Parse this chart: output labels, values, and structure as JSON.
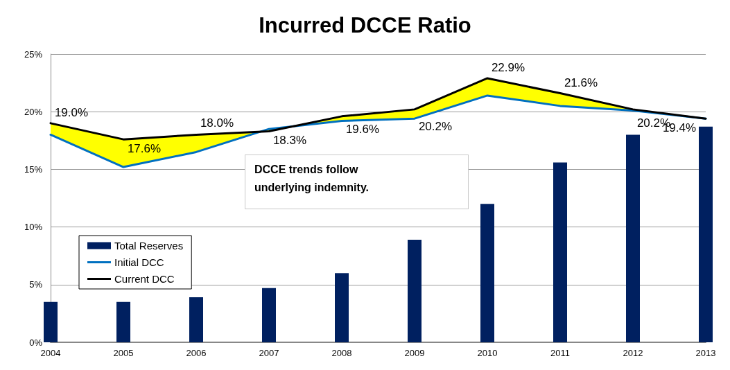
{
  "chart_data": {
    "type": "bar",
    "title": "Incurred DCCE Ratio",
    "categories": [
      "2004",
      "2005",
      "2006",
      "2007",
      "2008",
      "2009",
      "2010",
      "2011",
      "2012",
      "2013"
    ],
    "series": [
      {
        "name": "Total Reserves",
        "color": "#002060",
        "values": [
          3.5,
          3.5,
          3.9,
          4.7,
          6.0,
          8.9,
          12.0,
          15.6,
          18.0,
          18.7
        ]
      },
      {
        "name": "Initial DCC",
        "type": "line",
        "color": "#0070c0",
        "values": [
          18.0,
          15.2,
          16.5,
          18.5,
          19.2,
          19.4,
          21.4,
          20.5,
          20.1,
          19.4
        ]
      },
      {
        "name": "Current DCC",
        "type": "line",
        "color": "#000000",
        "values": [
          19.0,
          17.6,
          18.0,
          18.3,
          19.6,
          20.2,
          22.9,
          21.6,
          20.2,
          19.4
        ],
        "lower": [
          18.0,
          15.2,
          16.5,
          18.5,
          19.2,
          19.4,
          21.4,
          20.5,
          20.1,
          19.4
        ],
        "upper": [
          19.0,
          17.6,
          18.0,
          18.3,
          19.6,
          20.2,
          22.9,
          21.6,
          20.2,
          19.4
        ],
        "value_labels": [
          "19.0%",
          "17.6%",
          "18.0%",
          "18.3%",
          "19.6%",
          "20.2%",
          "22.9%",
          "21.6%",
          "20.2%",
          "19.4%"
        ]
      }
    ],
    "ylim": [
      0,
      25
    ],
    "yticks": [
      {
        "value": 0,
        "label": "0%"
      },
      {
        "value": 5,
        "label": "5%"
      },
      {
        "value": 10,
        "label": "10%"
      },
      {
        "value": 15,
        "label": "15%"
      },
      {
        "value": 20,
        "label": "20%"
      },
      {
        "value": 25,
        "label": "25%"
      }
    ],
    "grid": "y",
    "legend": "bottom left",
    "marker": "none",
    "annotations": [
      "DCCE trends follow underlying indemnity."
    ]
  }
}
